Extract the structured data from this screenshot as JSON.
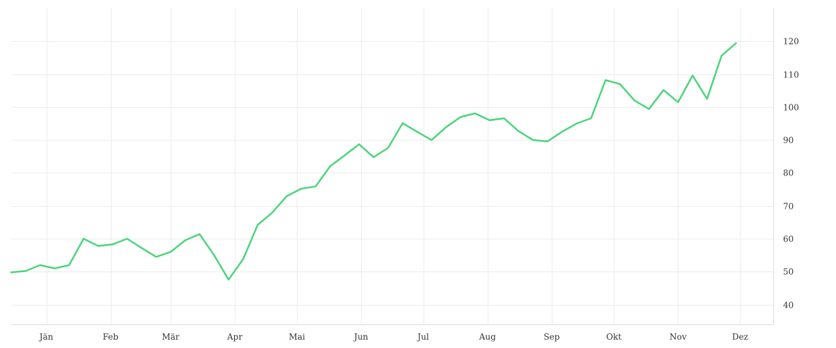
{
  "chart_data": {
    "type": "line",
    "title": "",
    "xlabel": "",
    "ylabel": "",
    "x_tick_labels": [
      "Jän",
      "Feb",
      "Mär",
      "Apr",
      "Mai",
      "Jun",
      "Jul",
      "Aug",
      "Sep",
      "Okt",
      "Nov",
      "Dez"
    ],
    "y_ticks": [
      40,
      50,
      60,
      70,
      80,
      90,
      100,
      110,
      120
    ],
    "ylim": [
      34,
      130
    ],
    "y_axis_position": "right",
    "grid": true,
    "legend": "none",
    "line_color": "#4cd47b",
    "x_range": [
      "2023-12-29",
      "2024-12-31"
    ],
    "series": [
      {
        "x": [
          "2023-12-29",
          "2024-01-05",
          "2024-01-12",
          "2024-01-19",
          "2024-01-26",
          "2024-02-02",
          "2024-02-09",
          "2024-02-16",
          "2024-02-23",
          "2024-03-01",
          "2024-03-08",
          "2024-03-15",
          "2024-03-22",
          "2024-03-29",
          "2024-04-05",
          "2024-04-12",
          "2024-04-19",
          "2024-04-26",
          "2024-05-03",
          "2024-05-10",
          "2024-05-17",
          "2024-05-24",
          "2024-05-31",
          "2024-06-07",
          "2024-06-14",
          "2024-06-21",
          "2024-06-28",
          "2024-07-05",
          "2024-07-12",
          "2024-07-19",
          "2024-07-26",
          "2024-08-02",
          "2024-08-09",
          "2024-08-16",
          "2024-08-23",
          "2024-08-30",
          "2024-09-06",
          "2024-09-13",
          "2024-09-20",
          "2024-09-27",
          "2024-10-04",
          "2024-10-11",
          "2024-10-18",
          "2024-10-25",
          "2024-11-01",
          "2024-11-08",
          "2024-11-15",
          "2024-11-22",
          "2024-11-29",
          "2024-12-06",
          "2024-12-13"
        ],
        "y": [
          49.8,
          50.2,
          52.0,
          51.0,
          52.0,
          60.0,
          57.8,
          58.3,
          60.0,
          57.2,
          54.5,
          56.0,
          59.5,
          61.4,
          55.0,
          47.6,
          53.8,
          64.2,
          67.9,
          72.9,
          75.2,
          75.9,
          82.0,
          85.3,
          88.7,
          84.8,
          87.6,
          95.1,
          92.5,
          90.0,
          93.9,
          97.0,
          98.1,
          96.0,
          96.6,
          92.7,
          90.0,
          89.6,
          92.5,
          95.0,
          96.6,
          108.2,
          107.0,
          102.0,
          99.4,
          105.2,
          101.5,
          109.6,
          102.5,
          115.6,
          119.4
        ]
      }
    ]
  }
}
